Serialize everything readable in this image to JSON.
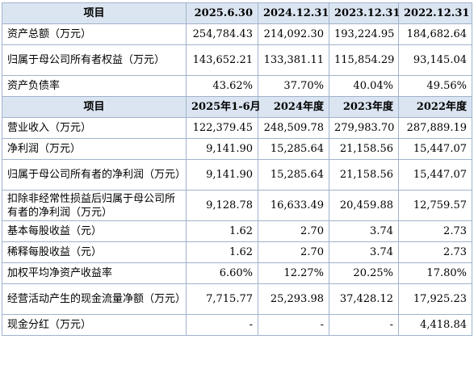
{
  "sections": [
    {
      "header": [
        "项目",
        "2025.6.30",
        "2024.12.31",
        "2023.12.31",
        "2022.12.31"
      ],
      "rows": [
        {
          "label": "资产总额（万元）",
          "values": [
            "254,784.43",
            "214,092.30",
            "193,224.95",
            "184,682.64"
          ]
        },
        {
          "label": "归属于母公司所有者权益（万元）",
          "values": [
            "143,652.21",
            "133,381.11",
            "115,854.29",
            "93,145.04"
          ]
        },
        {
          "label": "资产负债率",
          "values": [
            "43.62%",
            "37.70%",
            "40.04%",
            "49.56%"
          ]
        }
      ]
    },
    {
      "header": [
        "项目",
        "2025年1-6月",
        "2024年度",
        "2023年度",
        "2022年度"
      ],
      "rows": [
        {
          "label": "营业收入（万元）",
          "values": [
            "122,379.45",
            "248,509.78",
            "279,983.70",
            "287,889.19"
          ]
        },
        {
          "label": "净利润（万元）",
          "values": [
            "9,141.90",
            "15,285.64",
            "21,158.56",
            "15,447.07"
          ]
        },
        {
          "label": "归属于母公司所有者的净利润（万元）",
          "values": [
            "9,141.90",
            "15,285.64",
            "21,158.56",
            "15,447.07"
          ]
        },
        {
          "label": "扣除非经常性损益后归属于母公司所有者的净利润（万元）",
          "values": [
            "9,128.78",
            "16,633.49",
            "20,459.88",
            "12,759.57"
          ]
        },
        {
          "label": "基本每股收益（元）",
          "values": [
            "1.62",
            "2.70",
            "3.74",
            "2.73"
          ]
        },
        {
          "label": "稀释每股收益（元）",
          "values": [
            "1.62",
            "2.70",
            "3.74",
            "2.73"
          ]
        },
        {
          "label": "加权平均净资产收益率",
          "values": [
            "6.60%",
            "12.27%",
            "20.25%",
            "17.80%"
          ]
        },
        {
          "label": "经营活动产生的现金流量净额（万元）",
          "values": [
            "7,715.77",
            "25,293.98",
            "37,428.12",
            "17,925.23"
          ]
        },
        {
          "label": "现金分红（万元）",
          "values": [
            "-",
            "-",
            "-",
            "4,418.84"
          ]
        }
      ]
    }
  ]
}
